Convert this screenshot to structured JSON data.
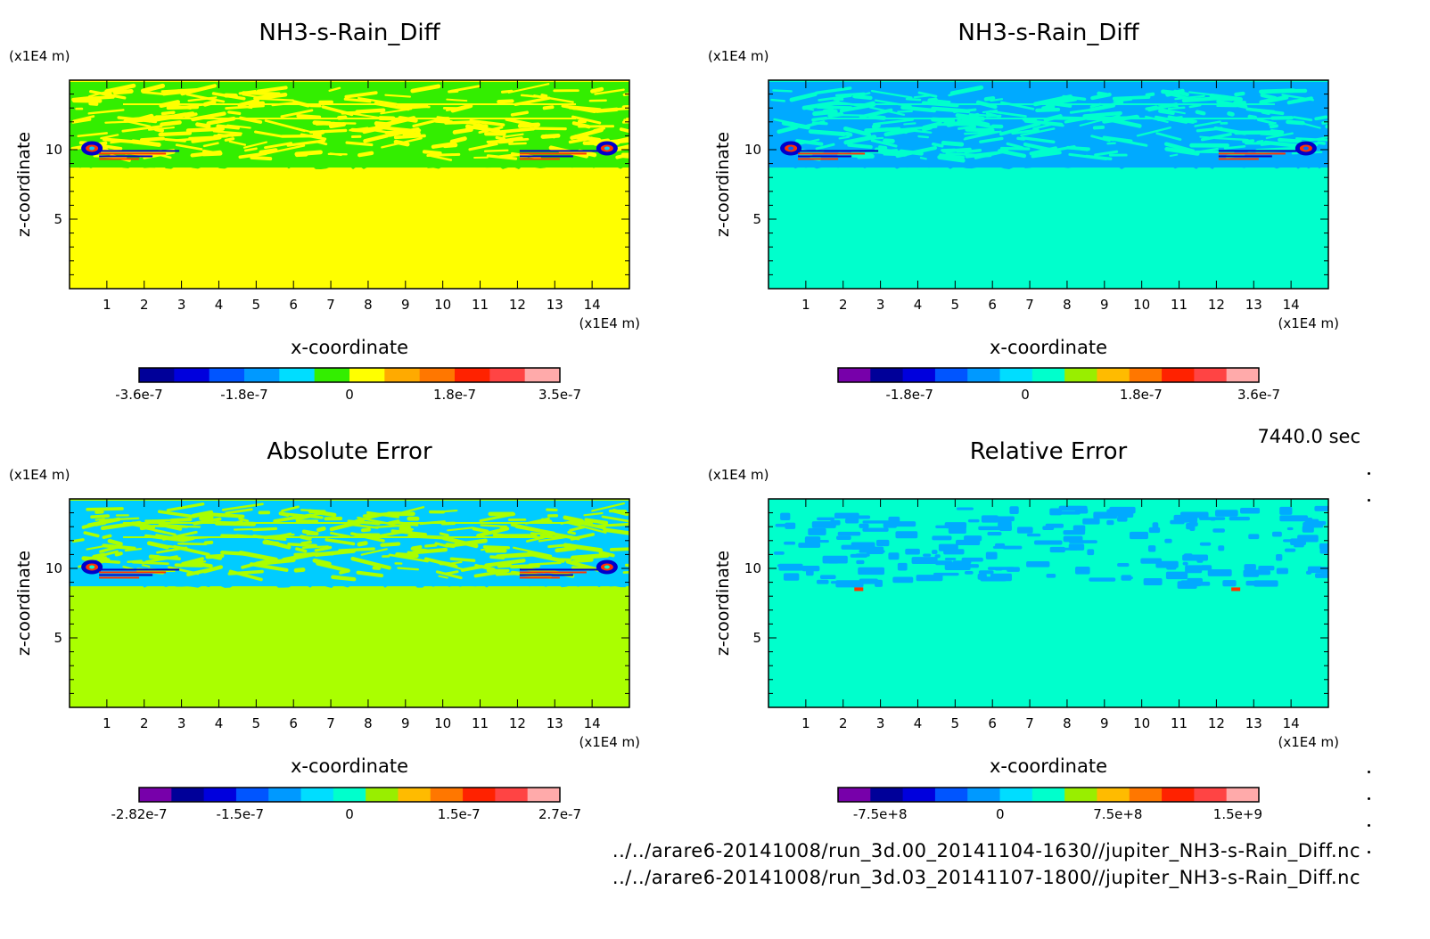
{
  "time_label": "7440.0 sec",
  "footer": {
    "line1": "../../arare6-20141008/run_3d.00_20141104-1630//jupiter_NH3-s-Rain_Diff.nc",
    "line2": "../../arare6-20141008/run_3d.03_20141107-1800//jupiter_NH3-s-Rain_Diff.nc"
  },
  "colors": {
    "background": "#ffffff",
    "axis": "#000000"
  },
  "chart_data": [
    {
      "type": "heatmap",
      "title": "NH3-s-Rain_Diff",
      "xlabel": "x-coordinate",
      "ylabel": "z-coordinate",
      "x_unit": "(x1E4 m)",
      "y_unit": "(x1E4 m)",
      "xlim": [
        0,
        15
      ],
      "ylim": [
        0,
        15
      ],
      "x_ticks": [
        1,
        2,
        3,
        4,
        5,
        6,
        7,
        8,
        9,
        10,
        11,
        12,
        13,
        14
      ],
      "y_ticks": [
        5,
        10
      ],
      "background_color": "#ffff00",
      "band_colors": [
        "#33ee00",
        "#ffff00"
      ],
      "accent_colors": [
        "#0000cc",
        "#ff3300",
        "#00ccff"
      ],
      "colorbar": {
        "colors": [
          "#000099",
          "#0000dd",
          "#0055ff",
          "#0099ff",
          "#00ddff",
          "#33ee00",
          "#ffff00",
          "#ffaa00",
          "#ff7700",
          "#ff2200",
          "#ff4444",
          "#ffaaaa"
        ],
        "labels": [
          "-3.6e-7",
          "-1.8e-7",
          "0",
          "1.8e-7",
          "3.5e-7"
        ]
      }
    },
    {
      "type": "heatmap",
      "title": "NH3-s-Rain_Diff",
      "xlabel": "x-coordinate",
      "ylabel": "z-coordinate",
      "x_unit": "(x1E4 m)",
      "y_unit": "(x1E4 m)",
      "xlim": [
        0,
        15
      ],
      "ylim": [
        0,
        15
      ],
      "x_ticks": [
        1,
        2,
        3,
        4,
        5,
        6,
        7,
        8,
        9,
        10,
        11,
        12,
        13,
        14
      ],
      "y_ticks": [
        5,
        10
      ],
      "background_color": "#00ffcc",
      "band_colors": [
        "#00aaff",
        "#00ffcc"
      ],
      "accent_colors": [
        "#0000cc",
        "#ff3300",
        "#0066ff"
      ],
      "colorbar": {
        "colors": [
          "#7700aa",
          "#000099",
          "#0000dd",
          "#0055ff",
          "#0099ff",
          "#00ddff",
          "#00ffcc",
          "#99ee00",
          "#ffbb00",
          "#ff7700",
          "#ff2200",
          "#ff4444",
          "#ffaaaa"
        ],
        "labels": [
          "-1.8e-7",
          "0",
          "1.8e-7",
          "3.6e-7"
        ]
      }
    },
    {
      "type": "heatmap",
      "title": "Absolute Error",
      "xlabel": "x-coordinate",
      "ylabel": "z-coordinate",
      "x_unit": "(x1E4 m)",
      "y_unit": "(x1E4 m)",
      "xlim": [
        0,
        15
      ],
      "ylim": [
        0,
        15
      ],
      "x_ticks": [
        1,
        2,
        3,
        4,
        5,
        6,
        7,
        8,
        9,
        10,
        11,
        12,
        13,
        14
      ],
      "y_ticks": [
        5,
        10
      ],
      "background_color": "#aaff00",
      "band_colors": [
        "#00ccff",
        "#aaff00"
      ],
      "accent_colors": [
        "#0000cc",
        "#ff3300",
        "#00ffcc"
      ],
      "colorbar": {
        "colors": [
          "#7700aa",
          "#000099",
          "#0000dd",
          "#0055ff",
          "#0099ff",
          "#00ddff",
          "#00ffcc",
          "#99ee00",
          "#ffbb00",
          "#ff7700",
          "#ff2200",
          "#ff4444",
          "#ffaaaa"
        ],
        "labels": [
          "-2.82e-7",
          "-1.5e-7",
          "0",
          "1.5e-7",
          "2.7e-7"
        ]
      }
    },
    {
      "type": "heatmap",
      "title": "Relative Error",
      "xlabel": "x-coordinate",
      "ylabel": "z-coordinate",
      "x_unit": "(x1E4 m)",
      "y_unit": "(x1E4 m)",
      "xlim": [
        0,
        15
      ],
      "ylim": [
        0,
        15
      ],
      "x_ticks": [
        1,
        2,
        3,
        4,
        5,
        6,
        7,
        8,
        9,
        10,
        11,
        12,
        13,
        14
      ],
      "y_ticks": [
        5,
        10
      ],
      "background_color": "#00ffcc",
      "band_colors": [
        "#00aaff",
        "#00ffcc"
      ],
      "accent_colors": [
        "#ff3300"
      ],
      "colorbar": {
        "colors": [
          "#7700aa",
          "#000099",
          "#0000dd",
          "#0055ff",
          "#0099ff",
          "#00ddff",
          "#00ffcc",
          "#99ee00",
          "#ffbb00",
          "#ff7700",
          "#ff2200",
          "#ff4444",
          "#ffaaaa"
        ],
        "labels": [
          "-7.5e+8",
          "0",
          "7.5e+8",
          "1.5e+9"
        ]
      }
    }
  ]
}
